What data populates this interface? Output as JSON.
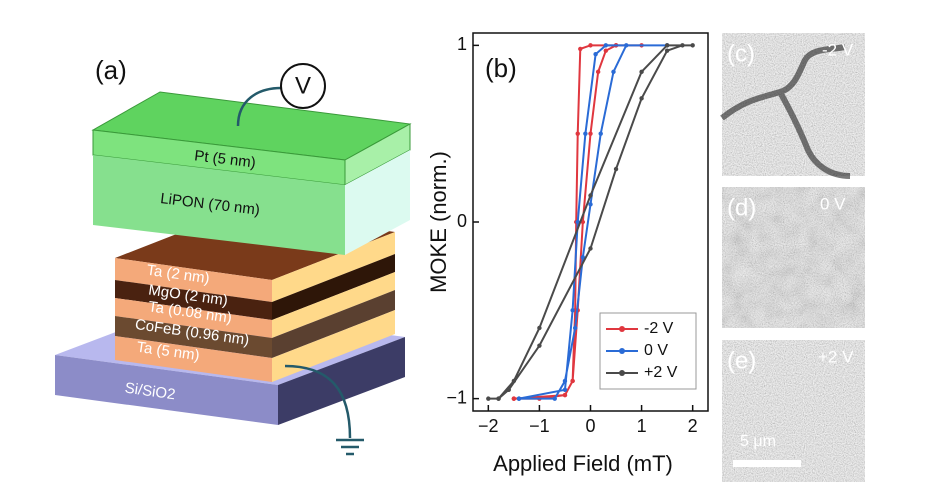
{
  "diagram": {
    "label": "(a)",
    "voltage": "V",
    "layers": [
      "Pt (5 nm)",
      "LiPON (70 nm)",
      "Ta (2 nm)",
      "MgO (2 nm)",
      "Ta (0.08 nm)",
      "CoFeB (0.96 nm)",
      "Ta (5 nm)",
      "Si/SiO2"
    ]
  },
  "images": [
    {
      "label": "(c)",
      "voltage": "-2 V"
    },
    {
      "label": "(d)",
      "voltage": "0 V"
    },
    {
      "label": "(e)",
      "voltage": "+2 V",
      "scale_bar": "5 μm"
    }
  ],
  "chart_data": {
    "type": "line",
    "label": "(b)",
    "x_label": "Applied Field (mT)",
    "y_label": "MOKE (norm.)",
    "xlim": [
      -2.3,
      2.3
    ],
    "ylim": [
      -1.07,
      1.07
    ],
    "xticks": [
      {
        "value": -2,
        "label": "−2"
      },
      {
        "value": -1,
        "label": "−1"
      },
      0,
      1,
      2
    ],
    "yticks": [
      {
        "value": -1,
        "label": "−1"
      },
      0,
      1
    ],
    "legend": "lower right",
    "series": [
      {
        "name": "-2 V",
        "color": "#e0373f",
        "x": [
          -1.5,
          -1,
          -0.5,
          -0.35,
          -0.25,
          -0.15,
          0,
          0.15,
          0.3,
          0.5,
          1,
          0.5,
          0,
          -0.2,
          -0.25,
          -0.28,
          -0.3,
          -0.35,
          -0.5,
          -1.5
        ],
        "values": [
          -1,
          -1,
          -0.98,
          -0.9,
          -0.5,
          0,
          0.5,
          0.85,
          0.97,
          1,
          1,
          1,
          1,
          0.98,
          0.5,
          0,
          -0.5,
          -0.9,
          -0.98,
          -1
        ]
      },
      {
        "name": "0 V",
        "color": "#2a6bd6",
        "x": [
          -1.4,
          -0.7,
          -0.5,
          -0.3,
          -0.15,
          0,
          0.2,
          0.45,
          0.7,
          1.5,
          0.3,
          0.1,
          -0.1,
          -0.25,
          -0.35,
          -0.5,
          -1.4
        ],
        "values": [
          -1,
          -1,
          -0.9,
          -0.6,
          -0.2,
          0.1,
          0.5,
          0.85,
          1,
          1,
          1,
          0.95,
          0.5,
          0,
          -0.5,
          -0.95,
          -1
        ]
      },
      {
        "name": "+2 V",
        "color": "#4a4a4a",
        "x": [
          -1.8,
          -1.6,
          -1,
          0,
          0.5,
          1,
          1.5,
          1.8,
          2,
          1.5,
          1,
          0,
          -1,
          -1.5,
          -1.8,
          -2
        ],
        "values": [
          -1,
          -0.95,
          -0.7,
          -0.15,
          0.3,
          0.7,
          0.97,
          1,
          1,
          1,
          0.85,
          0.15,
          -0.6,
          -0.9,
          -1,
          -1
        ]
      }
    ]
  }
}
